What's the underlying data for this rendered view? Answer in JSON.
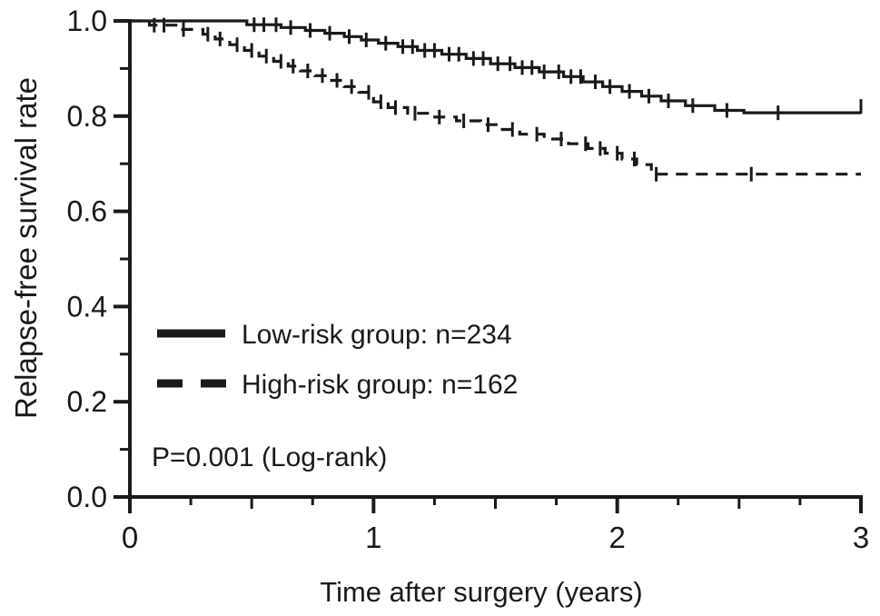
{
  "figure": {
    "background_color": "#ffffff",
    "line_color": "#1a1a1a"
  },
  "axes": {
    "x_title": "Time after surgery (years)",
    "y_title": "Relapse-free survival rate",
    "x_tick_labels": [
      "0",
      "1",
      "2",
      "3"
    ],
    "y_tick_labels": [
      "0.0",
      "0.2",
      "0.4",
      "0.6",
      "0.8",
      "1.0"
    ]
  },
  "legend": {
    "items": [
      {
        "label": "Low-risk group: n=234",
        "style": "solid"
      },
      {
        "label": "High-risk group: n=162",
        "style": "dashed"
      }
    ],
    "p_value_text": "P=0.001 (Log-rank)"
  },
  "chart_data": {
    "type": "line",
    "subtype": "kaplan-meier-step",
    "title": "",
    "xlabel": "Time after surgery (years)",
    "ylabel": "Relapse-free survival rate",
    "xlim": [
      0,
      3
    ],
    "ylim": [
      0.0,
      1.0
    ],
    "x_major_ticks": [
      0,
      1,
      2,
      3
    ],
    "x_minor_tick_step": 0.25,
    "y_major_ticks": [
      0.0,
      0.2,
      0.4,
      0.6,
      0.8,
      1.0
    ],
    "y_minor_tick_step": 0.1,
    "grid": false,
    "legend_position": "inside-lower-left",
    "annotation": "P=0.001 (Log-rank)",
    "series": [
      {
        "id": "low-risk",
        "name": "Low-risk group: n=234",
        "n": 234,
        "style": "solid",
        "end_tick": true,
        "final_value": 0.807,
        "steps": [
          [
            0,
            1.0
          ],
          [
            0.48,
            0.992
          ],
          [
            0.62,
            0.986
          ],
          [
            0.72,
            0.98
          ],
          [
            0.8,
            0.974
          ],
          [
            0.88,
            0.967
          ],
          [
            0.95,
            0.96
          ],
          [
            1.02,
            0.953
          ],
          [
            1.1,
            0.946
          ],
          [
            1.18,
            0.938
          ],
          [
            1.28,
            0.93
          ],
          [
            1.38,
            0.921
          ],
          [
            1.48,
            0.91
          ],
          [
            1.58,
            0.902
          ],
          [
            1.68,
            0.893
          ],
          [
            1.78,
            0.883
          ],
          [
            1.86,
            0.872
          ],
          [
            1.94,
            0.862
          ],
          [
            2.02,
            0.852
          ],
          [
            2.1,
            0.842
          ],
          [
            2.18,
            0.832
          ],
          [
            2.28,
            0.822
          ],
          [
            2.4,
            0.812
          ],
          [
            2.52,
            0.807
          ]
        ],
        "censor_times": [
          0.51,
          0.55,
          0.6,
          0.66,
          0.74,
          0.82,
          0.9,
          0.97,
          1.05,
          1.12,
          1.16,
          1.21,
          1.25,
          1.31,
          1.35,
          1.41,
          1.45,
          1.51,
          1.56,
          1.61,
          1.65,
          1.7,
          1.76,
          1.81,
          1.85,
          1.91,
          1.97,
          2.05,
          2.13,
          2.21,
          2.31,
          2.45,
          2.66
        ]
      },
      {
        "id": "high-risk",
        "name": "High-risk group: n=162",
        "n": 162,
        "style": "dashed",
        "end_tick": false,
        "final_value": 0.678,
        "steps": [
          [
            0,
            1.0
          ],
          [
            0.08,
            0.991
          ],
          [
            0.2,
            0.982
          ],
          [
            0.3,
            0.972
          ],
          [
            0.35,
            0.962
          ],
          [
            0.41,
            0.95
          ],
          [
            0.47,
            0.938
          ],
          [
            0.53,
            0.926
          ],
          [
            0.59,
            0.915
          ],
          [
            0.65,
            0.905
          ],
          [
            0.7,
            0.895
          ],
          [
            0.76,
            0.885
          ],
          [
            0.82,
            0.875
          ],
          [
            0.88,
            0.862
          ],
          [
            0.94,
            0.85
          ],
          [
            1.0,
            0.83
          ],
          [
            1.06,
            0.818
          ],
          [
            1.14,
            0.806
          ],
          [
            1.24,
            0.798
          ],
          [
            1.34,
            0.79
          ],
          [
            1.44,
            0.782
          ],
          [
            1.52,
            0.772
          ],
          [
            1.6,
            0.762
          ],
          [
            1.7,
            0.752
          ],
          [
            1.8,
            0.742
          ],
          [
            1.88,
            0.732
          ],
          [
            1.95,
            0.722
          ],
          [
            2.02,
            0.71
          ],
          [
            2.08,
            0.698
          ],
          [
            2.14,
            0.678
          ]
        ],
        "censor_times": [
          0.1,
          0.14,
          0.22,
          0.32,
          0.37,
          0.44,
          0.5,
          0.56,
          0.62,
          0.67,
          0.73,
          0.79,
          0.85,
          0.91,
          0.98,
          1.03,
          1.09,
          1.17,
          1.27,
          1.37,
          1.47,
          1.57,
          1.67,
          1.77,
          1.87,
          1.93,
          2.0,
          2.07,
          2.16,
          2.55
        ]
      }
    ]
  }
}
